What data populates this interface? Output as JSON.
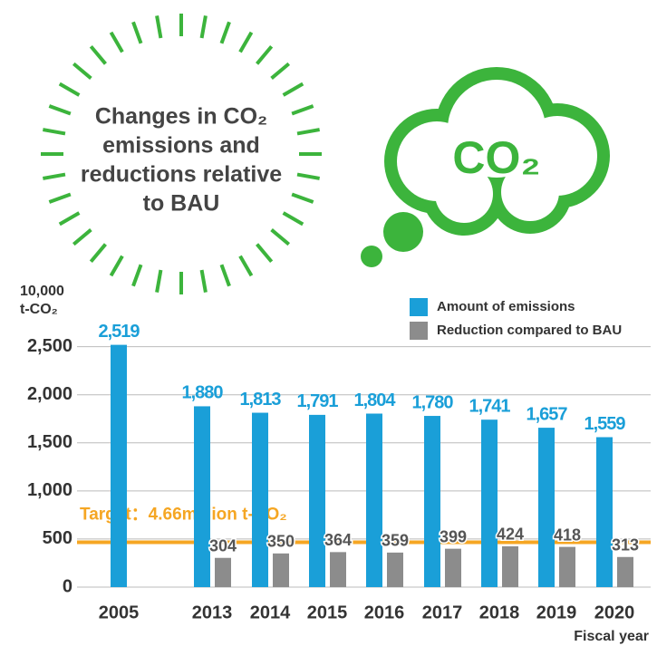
{
  "chart_data": {
    "type": "bar",
    "title": [
      "Changes in CO₂",
      "emissions and",
      "reductions relative",
      "to BAU"
    ],
    "icon_text": "CO₂",
    "y_unit": [
      "10,000",
      "t-CO₂"
    ],
    "xlabel": "Fiscal year",
    "categories": [
      "2005",
      "2013",
      "2014",
      "2015",
      "2016",
      "2017",
      "2018",
      "2019",
      "2020"
    ],
    "series": [
      {
        "name": "Amount of emissions",
        "color": "#1a9fd8",
        "values": [
          2519,
          1880,
          1813,
          1791,
          1804,
          1780,
          1741,
          1657,
          1559
        ],
        "value_labels": [
          "2,519",
          "1,880",
          "1,813",
          "1,791",
          "1,804",
          "1,780",
          "1,741",
          "1,657",
          "1,559"
        ]
      },
      {
        "name": "Reduction compared to BAU",
        "color": "#8c8c8c",
        "values": [
          null,
          304,
          350,
          364,
          359,
          399,
          424,
          418,
          313
        ]
      }
    ],
    "target": {
      "value": 466,
      "label": "Target：4.66million t-CO₂",
      "color": "#f5a623"
    },
    "ylim": [
      0,
      2600
    ],
    "yticks": [
      0,
      500,
      {
        "value": 1000,
        "label": "1,000"
      },
      {
        "value": 1500,
        "label": "1,500"
      },
      {
        "value": 2000,
        "label": "2,000"
      },
      {
        "value": 2500,
        "label": "2,500"
      }
    ],
    "grid": true,
    "legend": "upper right"
  }
}
